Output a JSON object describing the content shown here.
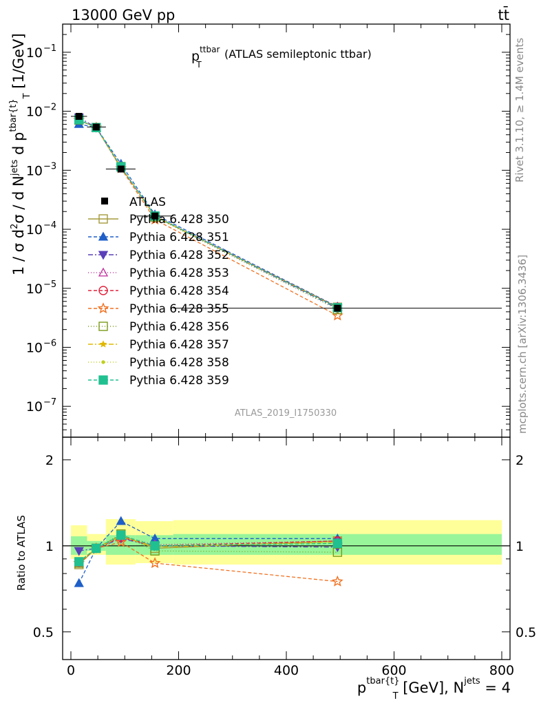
{
  "header": {
    "left": "13000 GeV pp",
    "right": "tt̄"
  },
  "side_labels": {
    "rivet": "Rivet 3.1.10, ≥ 1.4M events",
    "mcplots": "mcplots.cern.ch [arXiv:1306.3436]"
  },
  "chart_data": {
    "type": "line",
    "title_main": "p",
    "title_sup": "ttbar",
    "title_sub": "T",
    "title_rest": "(ATLAS semileptonic ttbar)",
    "analysis_id": "ATLAS_2019_I1750330",
    "ylabel_top": "1 / σ d²σ / d N^jets d p_T^tbar{t} [1/GeV]",
    "ylabel_top_parts": {
      "a": "1 / σ d",
      "a2": "2",
      "b": "σ / d N",
      "b2": "jets",
      "c": " d p",
      "c2": "tbar{t}",
      "c3": "T",
      "d": " [1/GeV]"
    },
    "ylabel_bottom": "Ratio to ATLAS",
    "xlabel_parts": {
      "a": "p",
      "a_sup": "tbar{t}",
      "a_sub": "T",
      "b": " [GeV], N",
      "b_sup": "jets",
      "c": " = 4"
    },
    "xlim": [
      0,
      800
    ],
    "ylim_top": [
      3e-08,
      0.3
    ],
    "ylim_ratio": [
      0.4,
      2.4
    ],
    "y_log_top": true,
    "y_log_ratio": true,
    "x_ticks": [
      "0",
      "200",
      "400",
      "600",
      "800"
    ],
    "y_ticks_top": [
      {
        "base": "10",
        "exp": "−1"
      },
      {
        "base": "10",
        "exp": "−2"
      },
      {
        "base": "10",
        "exp": "−3"
      },
      {
        "base": "10",
        "exp": "−4"
      },
      {
        "base": "10",
        "exp": "−5"
      },
      {
        "base": "10",
        "exp": "−6"
      },
      {
        "base": "10",
        "exp": "−7"
      }
    ],
    "y_ticks_ratio": [
      "2",
      "1",
      "0.5"
    ],
    "bins": [
      {
        "x": 15,
        "xlo": 0,
        "xhi": 30
      },
      {
        "x": 47,
        "xlo": 30,
        "xhi": 65
      },
      {
        "x": 93,
        "xlo": 65,
        "xhi": 120
      },
      {
        "x": 156,
        "xlo": 120,
        "xhi": 190
      },
      {
        "x": 495,
        "xlo": 190,
        "xhi": 800
      }
    ],
    "atlas": {
      "name": "ATLAS",
      "values": [
        0.0082,
        0.0054,
        0.00105,
        0.000168,
        4.6e-06
      ]
    },
    "band_inner": [
      [
        0.93,
        1.08
      ],
      [
        0.96,
        1.04
      ],
      [
        0.93,
        1.09
      ],
      [
        0.93,
        1.09
      ],
      [
        0.93,
        1.1
      ]
    ],
    "band_outer": [
      [
        0.9,
        1.18
      ],
      [
        0.93,
        1.1
      ],
      [
        0.86,
        1.24
      ],
      [
        0.87,
        1.22
      ],
      [
        0.86,
        1.23
      ]
    ],
    "legend_position": "middle-left",
    "series": [
      {
        "name": "Pythia 6.428 350",
        "color": "#a49a3c",
        "dash": "",
        "marker": "square-open",
        "ratio": [
          0.86,
          0.98,
          1.09,
          0.98,
          1.04
        ]
      },
      {
        "name": "Pythia 6.428 351",
        "color": "#1f5fc8",
        "dash": "5,3",
        "marker": "triangle-up",
        "ratio": [
          0.74,
          0.98,
          1.22,
          1.06,
          1.06
        ]
      },
      {
        "name": "Pythia 6.428 352",
        "color": "#5a3fb8",
        "dash": "7,3,2,3",
        "marker": "triangle-down",
        "ratio": [
          0.96,
          0.98,
          1.06,
          1.0,
          0.99
        ]
      },
      {
        "name": "Pythia 6.428 353",
        "color": "#c03ba0",
        "dash": "1,3",
        "marker": "triangle-up-open",
        "ratio": [
          0.87,
          0.98,
          1.08,
          1.01,
          1.04
        ]
      },
      {
        "name": "Pythia 6.428 354",
        "color": "#e0203a",
        "dash": "5,3",
        "marker": "circle-open",
        "ratio": [
          0.87,
          0.98,
          1.07,
          1.0,
          1.04
        ]
      },
      {
        "name": "Pythia 6.428 355",
        "color": "#f07020",
        "dash": "5,3",
        "marker": "star-open",
        "ratio": [
          0.87,
          0.98,
          1.03,
          0.87,
          0.75
        ]
      },
      {
        "name": "Pythia 6.428 356",
        "color": "#7a9a1a",
        "dash": "1,3",
        "marker": "square-open",
        "ratio": [
          0.87,
          0.98,
          1.1,
          0.96,
          0.95
        ]
      },
      {
        "name": "Pythia 6.428 357",
        "color": "#e0b800",
        "dash": "7,3,2,3",
        "marker": "star-small",
        "ratio": [
          0.88,
          0.98,
          1.08,
          0.99,
          1.03
        ]
      },
      {
        "name": "Pythia 6.428 358",
        "color": "#c0d020",
        "dash": "1,3",
        "marker": "dot",
        "ratio": [
          0.88,
          0.98,
          1.08,
          1.0,
          1.03
        ]
      },
      {
        "name": "Pythia 6.428 359",
        "color": "#20c090",
        "dash": "5,3",
        "marker": "square",
        "ratio": [
          0.88,
          0.98,
          1.09,
          1.0,
          1.02
        ]
      }
    ]
  }
}
